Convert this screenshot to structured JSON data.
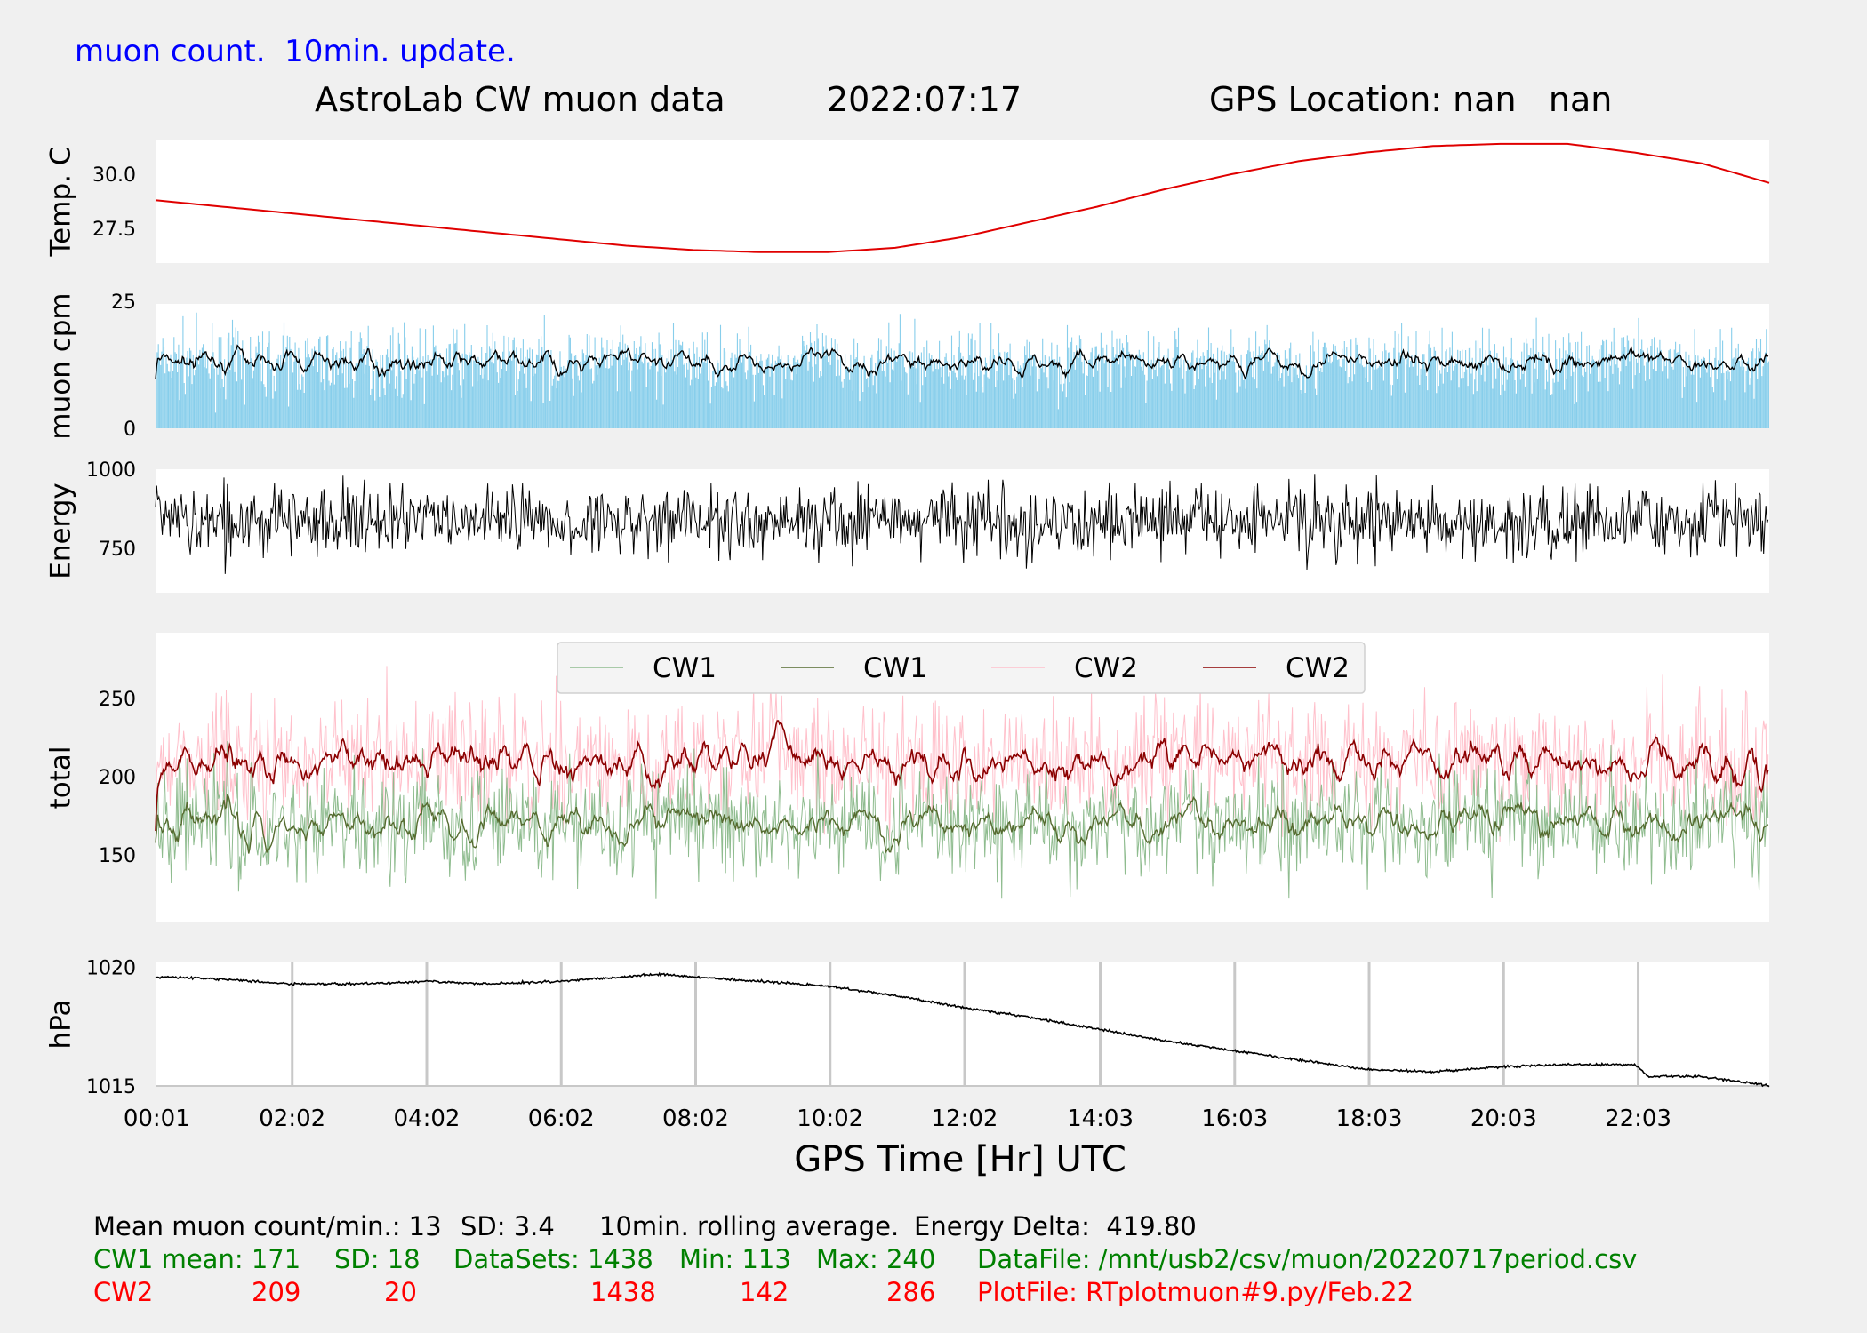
{
  "header": {
    "update_note": "muon count.  10min. update.",
    "title": "AstroLab CW muon data",
    "date": "2022:07:17",
    "gps_location": "GPS Location: nan   nan"
  },
  "chart_data": [
    {
      "type": "line",
      "ylabel": "Temp. C",
      "yticks": [
        27.5,
        30.0
      ],
      "ylim": [
        25.9,
        31.6
      ],
      "color": "#e00000",
      "x": [
        0,
        1,
        2,
        3,
        4,
        5,
        6,
        7,
        8,
        9,
        10,
        11,
        12,
        13,
        14,
        15,
        16,
        17,
        18,
        19,
        20,
        21,
        22,
        23,
        24
      ],
      "values": [
        28.8,
        28.5,
        28.2,
        27.9,
        27.6,
        27.3,
        27.0,
        26.7,
        26.5,
        26.4,
        26.4,
        26.6,
        27.1,
        27.8,
        28.5,
        29.3,
        30.0,
        30.6,
        31.0,
        31.3,
        31.4,
        31.4,
        31.0,
        30.5,
        29.6
      ],
      "grid": false
    },
    {
      "type": "bar",
      "ylabel": "muon cpm",
      "yticks": [
        0,
        25
      ],
      "ylim": [
        0,
        24.5
      ],
      "bar_color": "#87ceeb",
      "avg_color": "#000000",
      "mean": 13,
      "sd": 3.4,
      "count": 1438,
      "rolling_average_min": 10,
      "grid": false
    },
    {
      "type": "line",
      "ylabel": "Energy",
      "yticks": [
        750,
        1000
      ],
      "ylim": [
        610,
        1000
      ],
      "color": "#000000",
      "mean": 835,
      "spread": 55,
      "range": [
        606,
        1006
      ],
      "energy_delta": 419.8,
      "grid": false
    },
    {
      "type": "line",
      "ylabel": "total",
      "yticks": [
        150,
        200,
        250
      ],
      "ylim": [
        107,
        292
      ],
      "legend_position": "upper-center",
      "series": [
        {
          "name": "CW1",
          "kind": "raw",
          "color": "#8fbc8f",
          "mean": 171,
          "sd": 18,
          "min": 113,
          "max": 240
        },
        {
          "name": "CW1",
          "kind": "rolling",
          "color": "#556b2f",
          "mean": 171
        },
        {
          "name": "CW2",
          "kind": "raw",
          "color": "#ffc0cb",
          "mean": 209,
          "sd": 20,
          "min": 142,
          "max": 286
        },
        {
          "name": "CW2",
          "kind": "rolling",
          "color": "#8b0000",
          "mean": 209
        }
      ],
      "grid": false
    },
    {
      "type": "line",
      "ylabel": "hPa",
      "yticks": [
        1015,
        1020
      ],
      "ylim": [
        1015,
        1020.2
      ],
      "color": "#000000",
      "xlabel": "GPS Time  [Hr] UTC",
      "xticks": [
        "00:01",
        "02:02",
        "04:02",
        "06:02",
        "08:02",
        "10:02",
        "12:02",
        "14:03",
        "16:03",
        "18:03",
        "20:03",
        "22:03"
      ],
      "xtick_hours": [
        0.017,
        2.033,
        4.033,
        6.033,
        8.033,
        10.033,
        12.033,
        14.05,
        16.05,
        18.05,
        20.05,
        22.05
      ],
      "x": [
        0,
        1,
        2,
        3,
        4,
        5,
        6,
        7,
        7.5,
        8,
        9,
        10,
        11,
        12,
        13,
        14,
        15,
        16,
        17,
        18,
        19,
        20,
        21,
        22,
        22.05,
        22.2,
        23,
        24
      ],
      "values": [
        1019.6,
        1019.5,
        1019.3,
        1019.3,
        1019.4,
        1019.3,
        1019.4,
        1019.6,
        1019.7,
        1019.6,
        1019.4,
        1019.2,
        1018.8,
        1018.3,
        1017.9,
        1017.4,
        1016.9,
        1016.5,
        1016.1,
        1015.7,
        1015.6,
        1015.8,
        1015.9,
        1015.9,
        1015.8,
        1015.4,
        1015.4,
        1015.0
      ],
      "grid": "x"
    }
  ],
  "footer": {
    "line1": {
      "mean": "Mean muon count/min.: 13",
      "sd": "SD: 3.4",
      "rolling": "10min. rolling average.",
      "energy": "Energy Delta:  419.80"
    },
    "cw1": {
      "label": "CW1 mean: 171",
      "sd": "SD: 18",
      "datasets": "DataSets: 1438",
      "min": "Min: 113",
      "max": "Max: 240",
      "file": "DataFile: /mnt/usb2/csv/muon/20220717period.csv"
    },
    "cw2": {
      "label": "CW2",
      "mean": "209",
      "sd": "20",
      "datasets": "1438",
      "min": "142",
      "max": "286",
      "file": "PlotFile: RTplotmuon#9.py/Feb.22"
    }
  },
  "colors": {
    "blue": "#0000ff",
    "green": "#008000",
    "red": "#ff0000"
  }
}
